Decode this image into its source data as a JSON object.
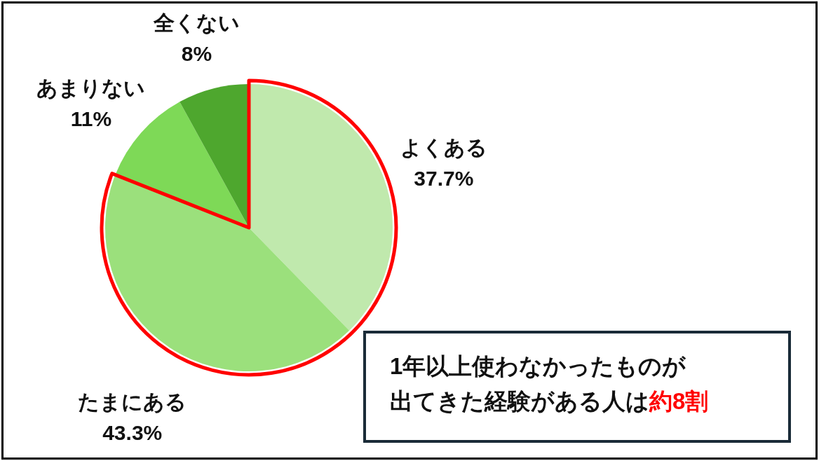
{
  "chart_data": {
    "type": "pie",
    "categories": [
      "よくある",
      "たまにある",
      "あまりない",
      "全くない"
    ],
    "values": [
      37.7,
      43.3,
      11,
      8
    ],
    "value_labels": [
      "37.7%",
      "43.3%",
      "11%",
      "8%"
    ],
    "colors": [
      "#c0e9ad",
      "#9be07c",
      "#7ed957",
      "#4ea72e"
    ],
    "annotations": [
      "1年以上使わなかったものが",
      "出てきた経験がある人は",
      "約8割"
    ]
  }
}
